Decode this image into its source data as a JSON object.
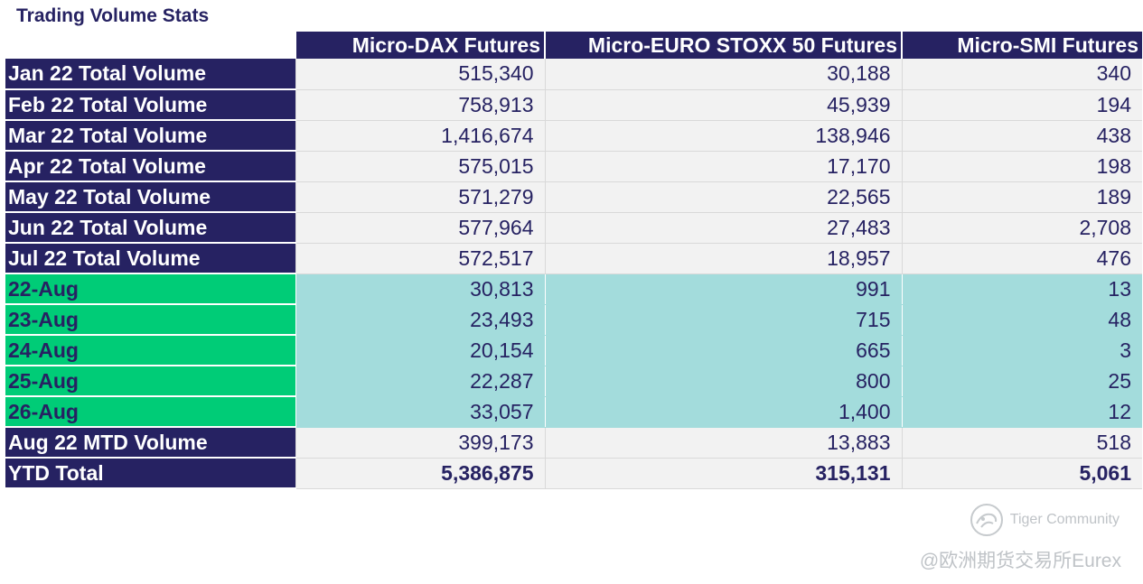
{
  "title": "Trading Volume Stats",
  "columns": [
    "Micro-DAX Futures",
    "Micro-EURO STOXX 50 Futures",
    "Micro-SMI Futures"
  ],
  "rows": [
    {
      "label": "Jan 22 Total Volume",
      "values": [
        "515,340",
        "30,188",
        "340"
      ]
    },
    {
      "label": "Feb 22 Total Volume",
      "values": [
        "758,913",
        "45,939",
        "194"
      ]
    },
    {
      "label": "Mar 22 Total Volume",
      "values": [
        "1,416,674",
        "138,946",
        "438"
      ]
    },
    {
      "label": "Apr 22 Total Volume",
      "values": [
        "575,015",
        "17,170",
        "198"
      ]
    },
    {
      "label": "May 22 Total Volume",
      "values": [
        "571,279",
        "22,565",
        "189"
      ]
    },
    {
      "label": "Jun 22 Total Volume",
      "values": [
        "577,964",
        "27,483",
        "2,708"
      ]
    },
    {
      "label": "Jul 22 Total Volume",
      "values": [
        "572,517",
        "18,957",
        "476"
      ]
    },
    {
      "label": "22-Aug",
      "values": [
        "30,813",
        "991",
        "13"
      ]
    },
    {
      "label": "23-Aug",
      "values": [
        "23,493",
        "715",
        "48"
      ]
    },
    {
      "label": "24-Aug",
      "values": [
        "20,154",
        "665",
        "3"
      ]
    },
    {
      "label": "25-Aug",
      "values": [
        "22,287",
        "800",
        "25"
      ]
    },
    {
      "label": "26-Aug",
      "values": [
        "33,057",
        "1,400",
        "12"
      ]
    },
    {
      "label": "Aug 22 MTD Volume",
      "values": [
        "399,173",
        "13,883",
        "518"
      ]
    },
    {
      "label": "YTD Total",
      "values": [
        "5,386,875",
        "315,131",
        "5,061"
      ]
    }
  ],
  "watermark": {
    "brand": "Tiger Community",
    "handle": "@欧洲期货交易所Eurex",
    "icon": "tiger-community-logo-icon"
  },
  "colors": {
    "header_bg": "#262262",
    "daily_label_bg": "#00cc77",
    "daily_cell_bg": "#a3dcdc",
    "cell_bg": "#f2f2f2"
  }
}
